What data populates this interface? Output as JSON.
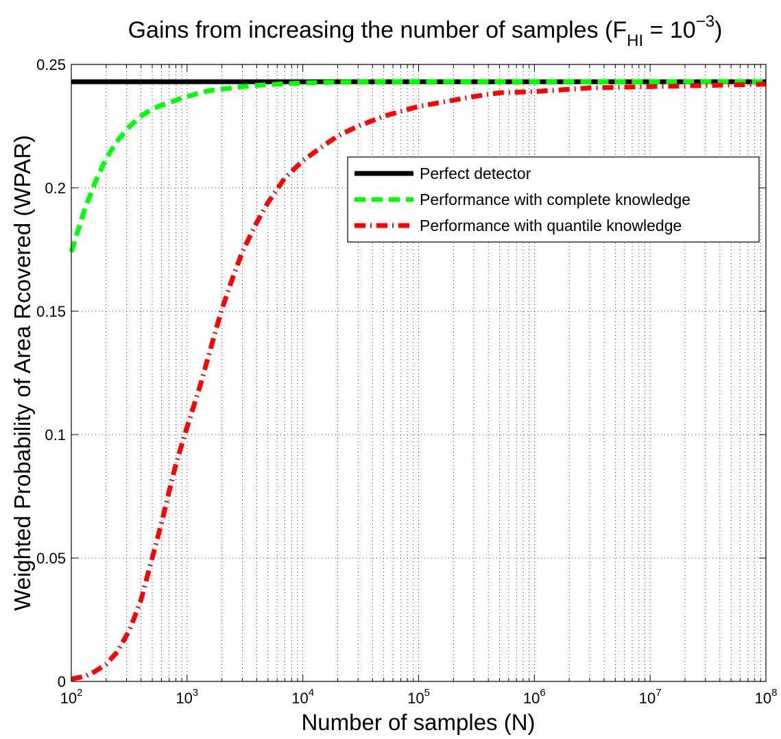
{
  "chart_data": {
    "type": "line",
    "title": "Gains from increasing the number of samples (F",
    "title_sub": "HI",
    "title_tail": " = 10",
    "title_sup": "−3",
    "title_close": ")",
    "xlabel": "Number of samples (N)",
    "ylabel": "Weighted Probability of Area Rcovered (WPAR)",
    "xscale": "log",
    "xlim": [
      100,
      100000000
    ],
    "ylim": [
      0,
      0.25
    ],
    "grid": true,
    "legend_position": "upper-right",
    "x_ticks": [
      {
        "value": 100,
        "base": "10",
        "exp": "2"
      },
      {
        "value": 1000,
        "base": "10",
        "exp": "3"
      },
      {
        "value": 10000,
        "base": "10",
        "exp": "4"
      },
      {
        "value": 100000,
        "base": "10",
        "exp": "5"
      },
      {
        "value": 1000000,
        "base": "10",
        "exp": "6"
      },
      {
        "value": 10000000,
        "base": "10",
        "exp": "7"
      },
      {
        "value": 100000000,
        "base": "10",
        "exp": "8"
      }
    ],
    "y_ticks": [
      {
        "value": 0,
        "label": "0"
      },
      {
        "value": 0.05,
        "label": "0.05"
      },
      {
        "value": 0.1,
        "label": "0.1"
      },
      {
        "value": 0.15,
        "label": "0.15"
      },
      {
        "value": 0.2,
        "label": "0.2"
      },
      {
        "value": 0.25,
        "label": "0.25"
      }
    ],
    "series": [
      {
        "name": "Perfect detector",
        "color": "#000000",
        "dash": "solid",
        "x": [
          100,
          100000000
        ],
        "y": [
          0.243,
          0.243
        ]
      },
      {
        "name": "Performance with complete knowledge",
        "color": "#00ff00",
        "dash": "dashed",
        "x": [
          100,
          130,
          160,
          200,
          250,
          320,
          400,
          500,
          650,
          800,
          1000,
          1300,
          1600,
          2000,
          3000,
          4000,
          6000,
          10000,
          20000,
          50000,
          100000,
          1000000,
          10000000,
          100000000
        ],
        "y": [
          0.174,
          0.191,
          0.202,
          0.212,
          0.219,
          0.225,
          0.229,
          0.232,
          0.234,
          0.2355,
          0.237,
          0.2385,
          0.2395,
          0.24,
          0.241,
          0.2415,
          0.242,
          0.2425,
          0.2428,
          0.243,
          0.243,
          0.243,
          0.243,
          0.243
        ]
      },
      {
        "name": "Performance with quantile knowledge",
        "color": "#ff0000",
        "dash": "dashdot",
        "x": [
          100,
          130,
          160,
          200,
          250,
          320,
          400,
          500,
          600,
          700,
          800,
          1000,
          1300,
          1600,
          2000,
          2500,
          3000,
          4000,
          5000,
          7000,
          10000,
          15000,
          20000,
          30000,
          50000,
          70000,
          100000,
          200000,
          300000,
          500000,
          1000000,
          3000000,
          10000000,
          100000000
        ],
        "y": [
          0.001,
          0.002,
          0.004,
          0.007,
          0.012,
          0.021,
          0.033,
          0.05,
          0.064,
          0.077,
          0.088,
          0.103,
          0.12,
          0.135,
          0.151,
          0.164,
          0.174,
          0.186,
          0.194,
          0.204,
          0.211,
          0.217,
          0.221,
          0.225,
          0.229,
          0.231,
          0.233,
          0.2355,
          0.237,
          0.2385,
          0.239,
          0.2405,
          0.241,
          0.242
        ]
      }
    ]
  }
}
